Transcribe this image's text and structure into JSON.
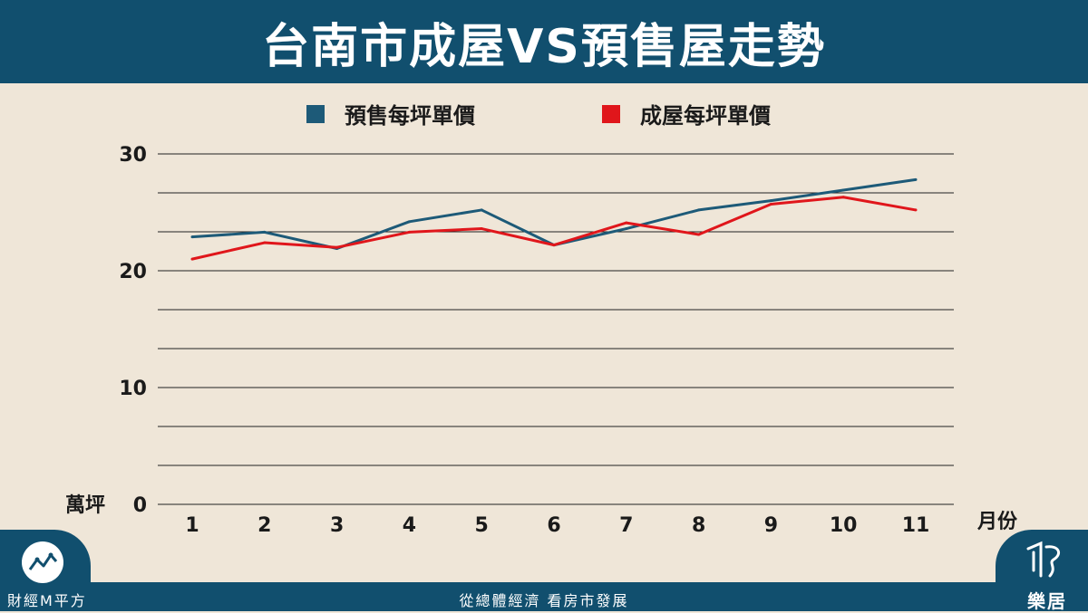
{
  "header": {
    "title": "台南市成屋VS預售屋走勢"
  },
  "legend": {
    "presale_label": "預售每坪單價",
    "completed_label": "成屋每坪單價"
  },
  "colors": {
    "header_bg": "#114f6e",
    "background": "#efe6d8",
    "presale": "#1d5a78",
    "completed": "#e0161b"
  },
  "chart_data": {
    "type": "line",
    "x": [
      1,
      2,
      3,
      4,
      5,
      6,
      7,
      8,
      9,
      10,
      11
    ],
    "xlabel": "月份",
    "ylabel": "萬坪",
    "ylim": [
      0,
      30
    ],
    "yticks": [
      0,
      10,
      20,
      30
    ],
    "grid": true,
    "legend_position": "top",
    "series": [
      {
        "name": "預售每坪單價",
        "color": "#1d5a78",
        "values": [
          22.9,
          23.3,
          21.9,
          24.2,
          25.2,
          22.2,
          23.6,
          25.2,
          26.0,
          26.9,
          27.8
        ]
      },
      {
        "name": "成屋每坪單價",
        "color": "#e0161b",
        "values": [
          21.0,
          22.4,
          22.0,
          23.3,
          23.6,
          22.2,
          24.1,
          23.1,
          25.7,
          26.3,
          25.2
        ]
      }
    ]
  },
  "footer": {
    "left_text": "財經M平方",
    "center_text": "從總體經濟 看房市發展",
    "right_text": "樂居"
  }
}
